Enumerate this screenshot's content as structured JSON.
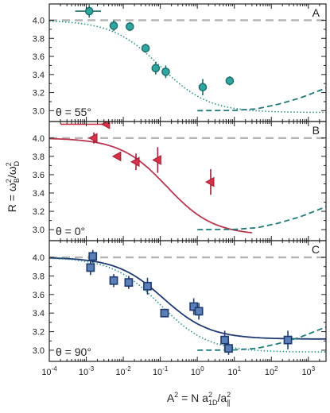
{
  "chart_data": [
    {
      "type": "scatter",
      "panel_letter": "A",
      "theta_label": "θ = 55°",
      "xscale": "log",
      "xlim": [
        0.0001,
        3000
      ],
      "ylim": [
        2.88,
        4.18
      ],
      "yticks": [
        "3.0",
        "3.2",
        "3.4",
        "3.6",
        "3.8",
        "4.0"
      ],
      "colors": {
        "marker": "#2fa5a0",
        "marker_edge": "#1d6e6a",
        "dotted": "#2f8f8c",
        "dashed": "#1f7a78",
        "reference": "#b5b5b5"
      },
      "series": [
        {
          "name": "",
          "kind": "markers",
          "marker": "circle",
          "points": [
            {
              "x": 0.0012,
              "y": 4.1,
              "xerr": [
                0.0005,
                0.0025
              ],
              "yerr": 0.07
            },
            {
              "x": 0.0055,
              "y": 3.94,
              "yerr": 0.06
            },
            {
              "x": 0.015,
              "y": 3.93,
              "yerr": 0.05
            },
            {
              "x": 0.04,
              "y": 3.69,
              "yerr": 0.05
            },
            {
              "x": 0.075,
              "y": 3.47,
              "yerr": 0.07
            },
            {
              "x": 0.14,
              "y": 3.43,
              "yerr": 0.07
            },
            {
              "x": 1.4,
              "y": 3.26,
              "yerr": 0.09
            },
            {
              "x": 7.5,
              "y": 3.33,
              "yerr": 0.05
            }
          ]
        },
        {
          "name": "",
          "kind": "dotted",
          "model": "sigmoid",
          "x0": 0.1,
          "width": 1.5,
          "top": 4.0,
          "bottom": 2.98,
          "xrange": [
            0.0001,
            3000
          ]
        },
        {
          "name": "",
          "kind": "dashed",
          "model": "curve",
          "points": [
            [
              1,
              3.0
            ],
            [
              10,
              3.003
            ],
            [
              40,
              3.02
            ],
            [
              150,
              3.07
            ],
            [
              600,
              3.14
            ],
            [
              3000,
              3.25
            ]
          ]
        },
        {
          "name": "",
          "kind": "reference",
          "y": 4.0
        }
      ]
    },
    {
      "type": "scatter",
      "panel_letter": "B",
      "theta_label": "θ = 0°",
      "xscale": "log",
      "xlim": [
        0.0001,
        3000
      ],
      "ylim": [
        2.88,
        4.18
      ],
      "yticks": [
        "3.0",
        "3.2",
        "3.4",
        "3.6",
        "3.8",
        "4.0"
      ],
      "colors": {
        "marker": "#d8324a",
        "marker_edge": "#9e1f33",
        "solid": "#b8364f",
        "dotted": "#2f8f8c",
        "dashed": "#1f7a78",
        "reference": "#b5b5b5"
      },
      "series": [
        {
          "name": "",
          "kind": "markers",
          "marker": "triangle-left",
          "points": [
            {
              "x": 0.0035,
              "y": 4.15,
              "xerr": [
                0.0002,
                0.0035
              ]
            },
            {
              "x": 0.0016,
              "y": 4.0,
              "xerr": [
                0.0015,
                0.0017
              ],
              "yerr": 0.06
            },
            {
              "x": 0.007,
              "y": 3.8,
              "xerr": [
                0.0062,
                0.0075
              ]
            },
            {
              "x": 0.022,
              "y": 3.74,
              "xerr": [
                0.0205,
                0.023
              ],
              "yerr": 0.09
            },
            {
              "x": 0.085,
              "y": 3.76,
              "xerr": [
                0.075,
                0.09
              ],
              "yerr": 0.14
            },
            {
              "x": 2.3,
              "y": 3.52,
              "xerr": [
                1.95,
                2.4
              ],
              "yerr": 0.14
            }
          ]
        },
        {
          "name": "",
          "kind": "solid",
          "model": "sigmoid",
          "x0": 0.15,
          "width": 1.45,
          "top": 4.0,
          "bottom": 2.94,
          "xrange": [
            0.0001,
            30
          ]
        },
        {
          "name": "",
          "kind": "dashed",
          "model": "curve",
          "points": [
            [
              1,
              3.0
            ],
            [
              10,
              3.003
            ],
            [
              40,
              3.02
            ],
            [
              150,
              3.07
            ],
            [
              600,
              3.14
            ],
            [
              3000,
              3.25
            ]
          ]
        },
        {
          "name": "",
          "kind": "reference",
          "y": 4.0
        }
      ]
    },
    {
      "type": "scatter",
      "panel_letter": "C",
      "theta_label": "θ = 90°",
      "xscale": "log",
      "xlim": [
        0.0001,
        3000
      ],
      "ylim": [
        2.88,
        4.18
      ],
      "yticks": [
        "3.0",
        "3.2",
        "3.4",
        "3.6",
        "3.8",
        "4.0"
      ],
      "xticks": [
        "10^-4",
        "10^-3",
        "10^-2",
        "10^-1",
        "10^0",
        "10^1",
        "10^2",
        "10^3"
      ],
      "colors": {
        "marker": "#5b80b8",
        "marker_edge": "#1f3a70",
        "solid": "#1f3a70",
        "dotted": "#2f8f8c",
        "dashed": "#1f7a78",
        "reference": "#b5b5b5"
      },
      "series": [
        {
          "name": "",
          "kind": "markers",
          "marker": "square",
          "points": [
            {
              "x": 0.0015,
              "y": 4.01,
              "yerr": 0.07
            },
            {
              "x": 0.0013,
              "y": 3.89,
              "yerr": 0.08
            },
            {
              "x": 0.0055,
              "y": 3.75,
              "yerr": 0.07
            },
            {
              "x": 0.014,
              "y": 3.73,
              "yerr": 0.07
            },
            {
              "x": 0.045,
              "y": 3.69,
              "yerr": 0.09
            },
            {
              "x": 0.13,
              "y": 3.4,
              "yerr": 0.04
            },
            {
              "x": 0.8,
              "y": 3.47,
              "yerr": 0.09
            },
            {
              "x": 1.1,
              "y": 3.42,
              "yerr": 0.09
            },
            {
              "x": 5.5,
              "y": 3.11,
              "yerr": 0.1
            },
            {
              "x": 7.0,
              "y": 3.02,
              "yerr": 0.07
            },
            {
              "x": 280,
              "y": 3.11,
              "yerr": 0.1
            }
          ]
        },
        {
          "name": "",
          "kind": "solid",
          "model": "sigmoid",
          "x0": 0.12,
          "width": 1.45,
          "top": 4.0,
          "bottom": 3.12,
          "xrange": [
            0.0001,
            3000
          ]
        },
        {
          "name": "",
          "kind": "dotted",
          "model": "sigmoid",
          "x0": 0.1,
          "width": 1.5,
          "top": 4.0,
          "bottom": 2.98,
          "xrange": [
            0.0001,
            3000
          ]
        },
        {
          "name": "",
          "kind": "dashed",
          "model": "curve",
          "points": [
            [
              1,
              3.0
            ],
            [
              10,
              3.003
            ],
            [
              40,
              3.02
            ],
            [
              150,
              3.07
            ],
            [
              600,
              3.14
            ],
            [
              3000,
              3.25
            ]
          ]
        },
        {
          "name": "",
          "kind": "reference",
          "y": 4.0
        }
      ]
    }
  ],
  "axes": {
    "ylabel": "R = ω²_B / ω²_D",
    "xlabel": "A² = N a²_1D / a²_∥"
  }
}
